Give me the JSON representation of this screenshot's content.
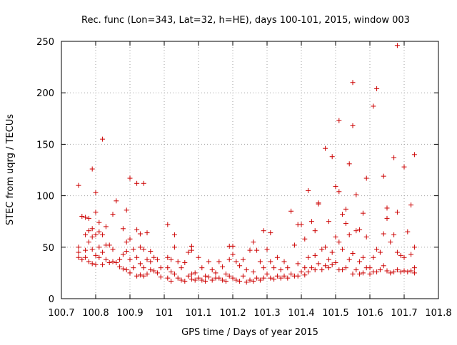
{
  "chart_data": {
    "type": "scatter",
    "title": "Rec. func (Lon=343, Lat=32, h=HE), days 100-101, 2015, window 003",
    "xlabel": "GPS time / Days of year 2015",
    "ylabel": "STEC from uqrg / TECUs",
    "xlim": [
      100.7,
      101.8
    ],
    "ylim": [
      0,
      250
    ],
    "xticks": [
      100.7,
      100.8,
      100.9,
      101,
      101.1,
      101.2,
      101.3,
      101.4,
      101.5,
      101.6,
      101.7,
      101.8
    ],
    "xtick_labels": [
      "100.7",
      "100.8",
      "100.9",
      "101",
      "101.1",
      "101.2",
      "101.3",
      "101.4",
      "101.5",
      "101.6",
      "101.7",
      "101.8"
    ],
    "yticks": [
      0,
      50,
      100,
      150,
      200,
      250
    ],
    "ytick_labels": [
      "0",
      "50",
      "100",
      "150",
      "200",
      "250"
    ],
    "grid": true,
    "marker": "+",
    "color": "#cc0000",
    "series": [
      {
        "points": [
          [
            100.75,
            110
          ],
          [
            100.75,
            50
          ],
          [
            100.75,
            45
          ],
          [
            100.75,
            40
          ],
          [
            100.76,
            38
          ],
          [
            100.76,
            80
          ],
          [
            100.77,
            79
          ],
          [
            100.77,
            62
          ],
          [
            100.77,
            47
          ],
          [
            100.77,
            40
          ],
          [
            100.78,
            78
          ],
          [
            100.78,
            66
          ],
          [
            100.78,
            55
          ],
          [
            100.78,
            36
          ],
          [
            100.79,
            126
          ],
          [
            100.79,
            68
          ],
          [
            100.79,
            60
          ],
          [
            100.79,
            48
          ],
          [
            100.79,
            34
          ],
          [
            100.8,
            103
          ],
          [
            100.8,
            84
          ],
          [
            100.8,
            62
          ],
          [
            100.8,
            42
          ],
          [
            100.8,
            33
          ],
          [
            100.81,
            74
          ],
          [
            100.81,
            65
          ],
          [
            100.81,
            50
          ],
          [
            100.81,
            40
          ],
          [
            100.82,
            155
          ],
          [
            100.82,
            62
          ],
          [
            100.82,
            45
          ],
          [
            100.82,
            33
          ],
          [
            100.83,
            70
          ],
          [
            100.83,
            52
          ],
          [
            100.83,
            38
          ],
          [
            100.84,
            52
          ],
          [
            100.84,
            35
          ],
          [
            100.85,
            82
          ],
          [
            100.85,
            48
          ],
          [
            100.85,
            36
          ],
          [
            100.86,
            95
          ],
          [
            100.86,
            35
          ],
          [
            100.87,
            38
          ],
          [
            100.87,
            31
          ],
          [
            100.88,
            68
          ],
          [
            100.88,
            43
          ],
          [
            100.88,
            29
          ],
          [
            100.89,
            86
          ],
          [
            100.89,
            55
          ],
          [
            100.89,
            46
          ],
          [
            100.89,
            28
          ],
          [
            100.9,
            117
          ],
          [
            100.9,
            58
          ],
          [
            100.9,
            38
          ],
          [
            100.9,
            25
          ],
          [
            100.91,
            48
          ],
          [
            100.91,
            30
          ],
          [
            100.92,
            112
          ],
          [
            100.92,
            67
          ],
          [
            100.92,
            40
          ],
          [
            100.92,
            22
          ],
          [
            100.93,
            63
          ],
          [
            100.93,
            50
          ],
          [
            100.93,
            34
          ],
          [
            100.93,
            23
          ],
          [
            100.94,
            112
          ],
          [
            100.94,
            48
          ],
          [
            100.94,
            30
          ],
          [
            100.94,
            22
          ],
          [
            100.95,
            64
          ],
          [
            100.95,
            38
          ],
          [
            100.95,
            24
          ],
          [
            100.96,
            46
          ],
          [
            100.96,
            36
          ],
          [
            100.96,
            28
          ],
          [
            100.97,
            40
          ],
          [
            100.97,
            27
          ],
          [
            100.98,
            38
          ],
          [
            100.98,
            25
          ],
          [
            100.99,
            30
          ],
          [
            100.99,
            21
          ],
          [
            101.01,
            72
          ],
          [
            101.01,
            40
          ],
          [
            101.01,
            30
          ],
          [
            101.01,
            20
          ],
          [
            101.02,
            38
          ],
          [
            101.02,
            26
          ],
          [
            101.02,
            17
          ],
          [
            101.03,
            62
          ],
          [
            101.03,
            50
          ],
          [
            101.03,
            24
          ],
          [
            101.04,
            36
          ],
          [
            101.04,
            20
          ],
          [
            101.05,
            30
          ],
          [
            101.05,
            18
          ],
          [
            101.06,
            35
          ],
          [
            101.06,
            17
          ],
          [
            101.07,
            45
          ],
          [
            101.07,
            22
          ],
          [
            101.08,
            51
          ],
          [
            101.08,
            47
          ],
          [
            101.08,
            24
          ],
          [
            101.08,
            19
          ],
          [
            101.09,
            25
          ],
          [
            101.09,
            18
          ],
          [
            101.1,
            40
          ],
          [
            101.1,
            20
          ],
          [
            101.11,
            30
          ],
          [
            101.11,
            18
          ],
          [
            101.12,
            22
          ],
          [
            101.12,
            17
          ],
          [
            101.13,
            36
          ],
          [
            101.13,
            21
          ],
          [
            101.14,
            28
          ],
          [
            101.14,
            18
          ],
          [
            101.15,
            25
          ],
          [
            101.15,
            20
          ],
          [
            101.16,
            36
          ],
          [
            101.16,
            20
          ],
          [
            101.17,
            31
          ],
          [
            101.17,
            18
          ],
          [
            101.18,
            24
          ],
          [
            101.18,
            17
          ],
          [
            101.19,
            51
          ],
          [
            101.19,
            38
          ],
          [
            101.19,
            22
          ],
          [
            101.2,
            51
          ],
          [
            101.2,
            43
          ],
          [
            101.2,
            20
          ],
          [
            101.21,
            36
          ],
          [
            101.21,
            18
          ],
          [
            101.22,
            32
          ],
          [
            101.22,
            17
          ],
          [
            101.23,
            38
          ],
          [
            101.23,
            22
          ],
          [
            101.24,
            28
          ],
          [
            101.24,
            16
          ],
          [
            101.25,
            47
          ],
          [
            101.25,
            18
          ],
          [
            101.26,
            55
          ],
          [
            101.26,
            26
          ],
          [
            101.26,
            17
          ],
          [
            101.27,
            47
          ],
          [
            101.27,
            20
          ],
          [
            101.28,
            36
          ],
          [
            101.28,
            18
          ],
          [
            101.29,
            66
          ],
          [
            101.29,
            30
          ],
          [
            101.29,
            20
          ],
          [
            101.3,
            48
          ],
          [
            101.3,
            24
          ],
          [
            101.31,
            64
          ],
          [
            101.31,
            36
          ],
          [
            101.31,
            20
          ],
          [
            101.32,
            30
          ],
          [
            101.32,
            19
          ],
          [
            101.33,
            40
          ],
          [
            101.33,
            22
          ],
          [
            101.34,
            28
          ],
          [
            101.34,
            20
          ],
          [
            101.35,
            36
          ],
          [
            101.35,
            22
          ],
          [
            101.36,
            30
          ],
          [
            101.36,
            20
          ],
          [
            101.37,
            85
          ],
          [
            101.37,
            24
          ],
          [
            101.38,
            52
          ],
          [
            101.38,
            22
          ],
          [
            101.39,
            72
          ],
          [
            101.39,
            34
          ],
          [
            101.39,
            22
          ],
          [
            101.4,
            72
          ],
          [
            101.4,
            26
          ],
          [
            101.41,
            58
          ],
          [
            101.41,
            30
          ],
          [
            101.41,
            23
          ],
          [
            101.42,
            105
          ],
          [
            101.42,
            40
          ],
          [
            101.42,
            26
          ],
          [
            101.43,
            75
          ],
          [
            101.43,
            30
          ],
          [
            101.44,
            66
          ],
          [
            101.44,
            42
          ],
          [
            101.44,
            28
          ],
          [
            101.45,
            93
          ],
          [
            101.45,
            92
          ],
          [
            101.45,
            34
          ],
          [
            101.46,
            48
          ],
          [
            101.46,
            28
          ],
          [
            101.47,
            146
          ],
          [
            101.47,
            50
          ],
          [
            101.47,
            32
          ],
          [
            101.48,
            75
          ],
          [
            101.48,
            38
          ],
          [
            101.48,
            30
          ],
          [
            101.49,
            138
          ],
          [
            101.49,
            45
          ],
          [
            101.49,
            33
          ],
          [
            101.5,
            109
          ],
          [
            101.5,
            60
          ],
          [
            101.5,
            35
          ],
          [
            101.51,
            173
          ],
          [
            101.51,
            104
          ],
          [
            101.51,
            55
          ],
          [
            101.51,
            28
          ],
          [
            101.52,
            82
          ],
          [
            101.52,
            48
          ],
          [
            101.52,
            28
          ],
          [
            101.53,
            87
          ],
          [
            101.53,
            73
          ],
          [
            101.53,
            30
          ],
          [
            101.54,
            131
          ],
          [
            101.54,
            62
          ],
          [
            101.54,
            38
          ],
          [
            101.55,
            210
          ],
          [
            101.55,
            168
          ],
          [
            101.55,
            44
          ],
          [
            101.55,
            24
          ],
          [
            101.56,
            101
          ],
          [
            101.56,
            66
          ],
          [
            101.56,
            28
          ],
          [
            101.57,
            67
          ],
          [
            101.57,
            36
          ],
          [
            101.57,
            24
          ],
          [
            101.58,
            83
          ],
          [
            101.58,
            40
          ],
          [
            101.58,
            25
          ],
          [
            101.59,
            117
          ],
          [
            101.59,
            60
          ],
          [
            101.59,
            30
          ],
          [
            101.6,
            30
          ],
          [
            101.6,
            24
          ],
          [
            101.61,
            187
          ],
          [
            101.61,
            40
          ],
          [
            101.61,
            26
          ],
          [
            101.62,
            204
          ],
          [
            101.62,
            48
          ],
          [
            101.62,
            26
          ],
          [
            101.63,
            45
          ],
          [
            101.63,
            28
          ],
          [
            101.64,
            119
          ],
          [
            101.64,
            63
          ],
          [
            101.64,
            32
          ],
          [
            101.65,
            88
          ],
          [
            101.65,
            78
          ],
          [
            101.65,
            27
          ],
          [
            101.66,
            55
          ],
          [
            101.66,
            25
          ],
          [
            101.67,
            137
          ],
          [
            101.67,
            62
          ],
          [
            101.67,
            26
          ],
          [
            101.68,
            246
          ],
          [
            101.68,
            84
          ],
          [
            101.68,
            45
          ],
          [
            101.68,
            28
          ],
          [
            101.69,
            42
          ],
          [
            101.69,
            26
          ],
          [
            101.7,
            128
          ],
          [
            101.7,
            40
          ],
          [
            101.7,
            27
          ],
          [
            101.71,
            65
          ],
          [
            101.71,
            26
          ],
          [
            101.72,
            91
          ],
          [
            101.72,
            43
          ],
          [
            101.72,
            27
          ],
          [
            101.73,
            140
          ],
          [
            101.73,
            50
          ],
          [
            101.73,
            30
          ],
          [
            101.73,
            25
          ]
        ]
      }
    ]
  }
}
